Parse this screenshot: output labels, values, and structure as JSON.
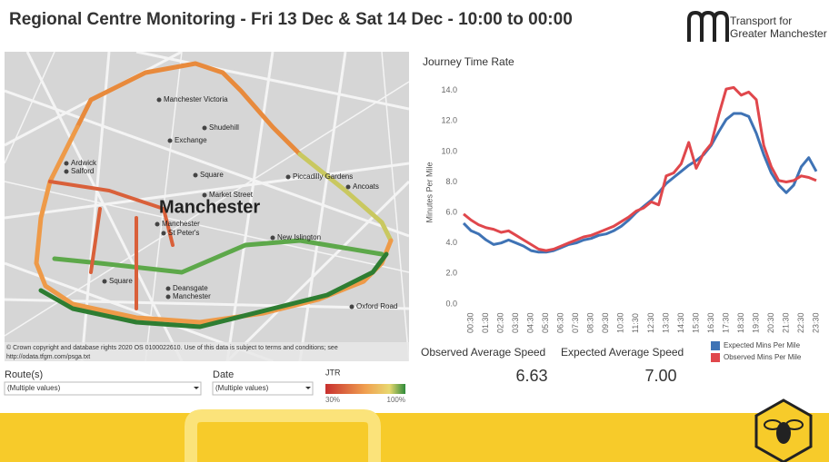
{
  "header": {
    "title": "Regional Centre Monitoring - Fri 13 Dec & Sat 14 Dec - 10:00 to 00:00",
    "logo_line1": "Transport for",
    "logo_line2": "Greater Manchester"
  },
  "map": {
    "city": "Manchester",
    "labels": [
      "Manchester Victoria",
      "Shudehill",
      "Exchange",
      "Square",
      "Market Street",
      "Piccadilly Gardens",
      "Ancoats",
      "New Islington",
      "Manchester",
      "St Peter's",
      "Square",
      "Deansgate",
      "Manchester",
      "Oxford Road",
      "Ardwick",
      "Salford",
      "Central"
    ],
    "copyright_line1": "© Crown copyright and database rights 2020 OS 0100022610. Use of this data is subject to terms and conditions; see",
    "copyright_line2": "http://odata.tfgm.com/psga.txt"
  },
  "filters": {
    "route_label": "Route(s)",
    "route_value": "(Multiple values)",
    "date_label": "Date",
    "date_value": "(Multiple values)",
    "jtr_label": "JTR",
    "jtr_min": "30%",
    "jtr_max": "100%"
  },
  "kpis": {
    "observed_label": "Observed Average Speed",
    "observed_value": "6.63",
    "expected_label": "Expected Average Speed",
    "expected_value": "7.00"
  },
  "chart_data": {
    "type": "line",
    "title": "Journey Time Rate",
    "y_label": "Minutes Per Mile",
    "categories": [
      null,
      "00:30",
      null,
      "01:30",
      null,
      "02:30",
      null,
      "03:30",
      null,
      "04:30",
      null,
      "05:30",
      null,
      "06:30",
      null,
      "07:30",
      null,
      "08:30",
      null,
      "09:30",
      null,
      "10:30",
      null,
      "11:30",
      null,
      "12:30",
      null,
      "13:30",
      null,
      "14:30",
      null,
      "15:30",
      null,
      "16:30",
      null,
      "17:30",
      null,
      "18:30",
      null,
      "19:30",
      null,
      "20:30",
      null,
      "21:30",
      null,
      "22:30",
      null,
      "23:30"
    ],
    "series": [
      {
        "name": "Expected Mins Per Mile",
        "color": "#3f73b5",
        "values": [
          5.3,
          4.8,
          4.6,
          4.2,
          3.9,
          4.0,
          4.2,
          4.0,
          3.8,
          3.5,
          3.4,
          3.4,
          3.5,
          3.7,
          3.9,
          4.0,
          4.2,
          4.3,
          4.5,
          4.6,
          4.8,
          5.1,
          5.5,
          6.0,
          6.4,
          6.8,
          7.3,
          7.9,
          8.3,
          8.7,
          9.1,
          9.4,
          9.8,
          10.4,
          11.3,
          12.1,
          12.5,
          12.5,
          12.3,
          11.2,
          9.8,
          8.6,
          7.8,
          7.3,
          7.8,
          9.0,
          9.6,
          8.7
        ]
      },
      {
        "name": "Observed Mins Per Mile",
        "color": "#e0474c",
        "values": [
          5.9,
          5.5,
          5.2,
          5.0,
          4.9,
          4.7,
          4.8,
          4.5,
          4.2,
          3.9,
          3.6,
          3.5,
          3.6,
          3.8,
          4.0,
          4.2,
          4.4,
          4.5,
          4.7,
          4.9,
          5.1,
          5.4,
          5.7,
          6.1,
          6.3,
          6.7,
          6.5,
          8.4,
          8.6,
          9.2,
          10.6,
          8.9,
          9.9,
          10.5,
          12.4,
          14.1,
          14.2,
          13.7,
          13.9,
          13.4,
          10.4,
          9.0,
          8.1,
          8.0,
          8.1,
          8.4,
          8.3,
          8.1
        ]
      }
    ],
    "ylim": [
      -0.6,
      14.7
    ],
    "yticks": [
      {
        "value": 0,
        "label": "0.0"
      },
      {
        "value": 2,
        "label": "2.0"
      },
      {
        "value": 4,
        "label": "4.0"
      },
      {
        "value": 6,
        "label": "6.0"
      },
      {
        "value": 8,
        "label": "8.0"
      },
      {
        "value": 10,
        "label": "10.0"
      },
      {
        "value": 12,
        "label": "12.0"
      },
      {
        "value": 14,
        "label": "14.0"
      }
    ],
    "grid": false,
    "legend": "bottom-right"
  }
}
